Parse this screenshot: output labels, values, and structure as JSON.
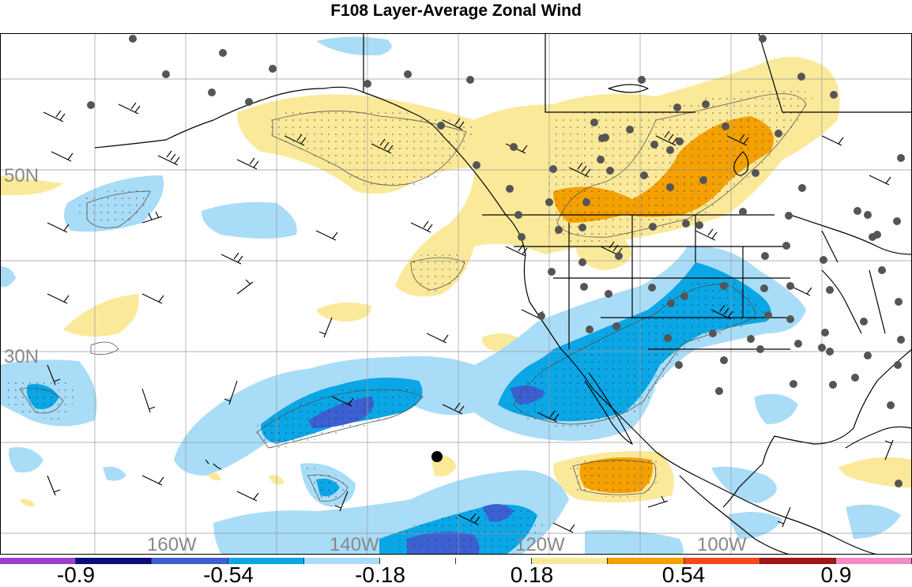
{
  "title": "F108 Layer-Average Zonal Wind",
  "colors": {
    "bins": [
      "#9b3fd0",
      "#0d0d7a",
      "#3c5fd1",
      "#0aa6e6",
      "#a9dcf7",
      "#ffffff",
      "#ffffff",
      "#fbe99a",
      "#f4a000",
      "#f4481a",
      "#a01515",
      "#f38cc4"
    ],
    "coast": "#000000",
    "grid": "#9a9a9a",
    "stations": "#555555"
  },
  "colorbar_labels": [
    "-0.9",
    "-0.54",
    "-0.18",
    "0.18",
    "0.54",
    "0.9"
  ],
  "grid_labels": {
    "lat": [
      "50N",
      "30N"
    ],
    "lon": [
      "160W",
      "140W",
      "120W",
      "100W"
    ]
  }
}
